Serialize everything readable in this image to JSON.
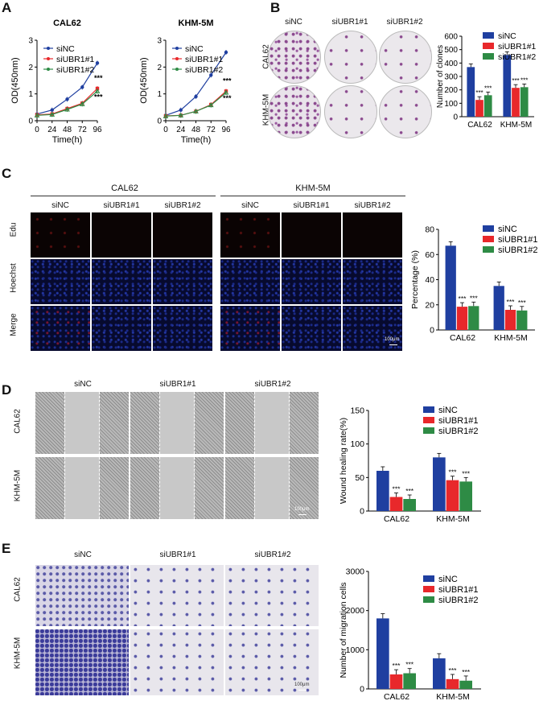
{
  "panels": {
    "A": "A",
    "B": "B",
    "C": "C",
    "D": "D",
    "E": "E"
  },
  "panel_A": {
    "titles": [
      "CAL62",
      "KHM-5M"
    ]
  },
  "panel_B": {
    "columns": [
      "siNC",
      "siUBR1#1",
      "siUBR1#2"
    ],
    "rows": [
      "CAL62",
      "KHM-5M"
    ]
  },
  "panel_C": {
    "groups": [
      "CAL62",
      "KHM-5M"
    ],
    "columns": [
      "siNC",
      "siUBR1#1",
      "siUBR1#2"
    ],
    "rows": [
      "Edu",
      "Hoechst",
      "Merge"
    ],
    "scalebar": "100μm"
  },
  "panel_D": {
    "columns": [
      "siNC",
      "siUBR1#1",
      "siUBR1#2"
    ],
    "rows": [
      "CAL62",
      "KHM-5M"
    ],
    "scalebar": "100μm"
  },
  "panel_E": {
    "columns": [
      "siNC",
      "siUBR1#1",
      "siUBR1#2"
    ],
    "rows": [
      "CAL62",
      "KHM-5M"
    ],
    "scalebar": "100μm"
  },
  "colors": {
    "siNC": "#1f3fa0",
    "siUBR1#1": "#e8282b",
    "siUBR1#2": "#2e8b45"
  },
  "chart_data": [
    {
      "id": "A1",
      "type": "line",
      "title": "CAL62",
      "xlabel": "Time(h)",
      "ylabel": "OD(450nm)",
      "x": [
        0,
        24,
        48,
        72,
        96
      ],
      "xlim": [
        0,
        96
      ],
      "ylim": [
        0,
        3.0
      ],
      "yticks": [
        0,
        1,
        2,
        3
      ],
      "series": [
        {
          "name": "siNC",
          "values": [
            0.25,
            0.4,
            0.8,
            1.25,
            2.15
          ]
        },
        {
          "name": "siUBR1#1",
          "values": [
            0.22,
            0.25,
            0.45,
            0.65,
            1.2
          ]
        },
        {
          "name": "siUBR1#2",
          "values": [
            0.2,
            0.23,
            0.42,
            0.62,
            1.1
          ]
        }
      ],
      "annotations": [
        "***",
        "***"
      ]
    },
    {
      "id": "A2",
      "type": "line",
      "title": "KHM-5M",
      "xlabel": "Time(h)",
      "ylabel": "OD(450nm)",
      "x": [
        0,
        24,
        48,
        72,
        96
      ],
      "xlim": [
        0,
        96
      ],
      "ylim": [
        0,
        3.0
      ],
      "yticks": [
        0,
        1,
        2,
        3
      ],
      "series": [
        {
          "name": "siNC",
          "values": [
            0.2,
            0.4,
            0.9,
            1.7,
            2.55
          ]
        },
        {
          "name": "siUBR1#1",
          "values": [
            0.18,
            0.2,
            0.35,
            0.6,
            1.1
          ]
        },
        {
          "name": "siUBR1#2",
          "values": [
            0.17,
            0.2,
            0.35,
            0.58,
            1.05
          ]
        }
      ],
      "annotations": [
        "***",
        "***"
      ]
    },
    {
      "id": "B",
      "type": "bar",
      "ylabel": "Number of clones",
      "categories": [
        "CAL62",
        "KHM-5M"
      ],
      "ylim": [
        0,
        600
      ],
      "yticks": [
        0,
        100,
        200,
        300,
        400,
        500,
        600
      ],
      "series": [
        {
          "name": "siNC",
          "values": [
            370,
            460
          ]
        },
        {
          "name": "siUBR1#1",
          "values": [
            125,
            215
          ]
        },
        {
          "name": "siUBR1#2",
          "values": [
            160,
            220
          ]
        }
      ],
      "annotation": "***"
    },
    {
      "id": "C",
      "type": "bar",
      "ylabel": "Percentage (%)",
      "categories": [
        "CAL62",
        "KHM-5M"
      ],
      "ylim": [
        0,
        80
      ],
      "yticks": [
        0,
        20,
        40,
        60,
        80
      ],
      "series": [
        {
          "name": "siNC",
          "values": [
            67,
            35
          ]
        },
        {
          "name": "siUBR1#1",
          "values": [
            18.5,
            16
          ]
        },
        {
          "name": "siUBR1#2",
          "values": [
            19,
            15.5
          ]
        }
      ],
      "annotation": "***"
    },
    {
      "id": "D",
      "type": "bar",
      "ylabel": "Wound healing rate(%)",
      "categories": [
        "CAL62",
        "KHM-5M"
      ],
      "ylim": [
        0,
        150
      ],
      "yticks": [
        0,
        50,
        100,
        150
      ],
      "series": [
        {
          "name": "siNC",
          "values": [
            60,
            80
          ]
        },
        {
          "name": "siUBR1#1",
          "values": [
            21,
            46
          ]
        },
        {
          "name": "siUBR1#2",
          "values": [
            18,
            44
          ]
        }
      ],
      "annotation": "***"
    },
    {
      "id": "E",
      "type": "bar",
      "ylabel": "Number of migration cells",
      "categories": [
        "CAL62",
        "KHM-5M"
      ],
      "ylim": [
        0,
        3000
      ],
      "yticks": [
        0,
        1000,
        2000,
        3000
      ],
      "series": [
        {
          "name": "siNC",
          "values": [
            1800,
            780
          ]
        },
        {
          "name": "siUBR1#1",
          "values": [
            370,
            250
          ]
        },
        {
          "name": "siUBR1#2",
          "values": [
            400,
            210
          ]
        }
      ],
      "annotation": "***"
    }
  ]
}
